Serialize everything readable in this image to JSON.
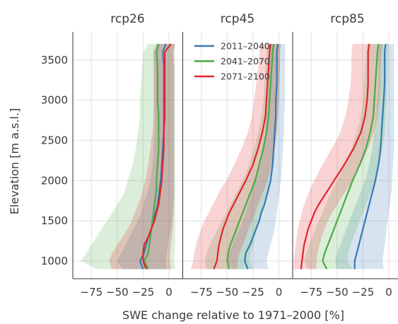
{
  "chart_data": {
    "type": "line",
    "ylabel": "Elevation [m a.s.l.]",
    "xlabel": "SWE change relative to 1971–2000 [%]",
    "xlim": [
      -93,
      13
    ],
    "ylim": [
      780,
      3850
    ],
    "xticks": [
      -75,
      -50,
      -25,
      0
    ],
    "xtick_labels": [
      "−75",
      "−50",
      "−25",
      "0"
    ],
    "yticks": [
      1000,
      1500,
      2000,
      2500,
      3000,
      3500
    ],
    "ytick_labels": [
      "1000",
      "1500",
      "2000",
      "2500",
      "3000",
      "3500"
    ],
    "grid": true,
    "legend_placement": "top-center (rcp45 panel)",
    "colors": {
      "2011–2040": "#3878b4",
      "2041–2070": "#4aab46",
      "2071–2100": "#e0252a"
    },
    "series_names": [
      "2011–2040",
      "2041–2070",
      "2071–2100"
    ],
    "elevations": [
      900,
      1000,
      1100,
      1200,
      1300,
      1400,
      1500,
      1600,
      1700,
      1800,
      1900,
      2000,
      2200,
      2400,
      2600,
      2800,
      3000,
      3200,
      3400,
      3600,
      3700
    ],
    "panels": [
      {
        "title": "rcp26",
        "series": [
          {
            "name": "2011–2040",
            "values": [
              -25,
              -28,
              -24,
              -22,
              -20,
              -17,
              -15,
              -13,
              -11,
              -10,
              -9,
              -8,
              -7,
              -6,
              -5,
              -5,
              -5,
              -5,
              -5,
              -6,
              -3
            ],
            "low": [
              -45,
              -50,
              -46,
              -42,
              -38,
              -34,
              -30,
              -27,
              -25,
              -22,
              -20,
              -18,
              -16,
              -15,
              -14,
              -14,
              -14,
              -14,
              -14,
              -15,
              -12
            ],
            "high": [
              -2,
              -3,
              -2,
              -1,
              0,
              2,
              3,
              4,
              4,
              5,
              5,
              5,
              5,
              5,
              5,
              5,
              5,
              5,
              5,
              4,
              5
            ]
          },
          {
            "name": "2041–2070",
            "values": [
              -20,
              -24,
              -20,
              -19,
              -18,
              -17,
              -16,
              -15,
              -14,
              -13,
              -12,
              -12,
              -11,
              -10,
              -10,
              -10,
              -11,
              -11,
              -11,
              -12,
              -10
            ],
            "low": [
              -70,
              -85,
              -80,
              -75,
              -70,
              -65,
              -60,
              -55,
              -50,
              -45,
              -42,
              -40,
              -35,
              -32,
              -30,
              -28,
              -28,
              -27,
              -26,
              -25,
              -20
            ],
            "high": [
              6,
              5,
              5,
              6,
              6,
              6,
              6,
              6,
              6,
              6,
              6,
              6,
              6,
              6,
              6,
              6,
              6,
              6,
              6,
              5,
              6
            ]
          },
          {
            "name": "2071–2100",
            "values": [
              -22,
              -25,
              -25,
              -24,
              -20,
              -17,
              -14,
              -12,
              -10,
              -9,
              -8,
              -7,
              -6,
              -5,
              -5,
              -4,
              -4,
              -4,
              -4,
              -4,
              2
            ],
            "low": [
              -55,
              -58,
              -55,
              -50,
              -45,
              -40,
              -36,
              -33,
              -30,
              -27,
              -25,
              -23,
              -20,
              -18,
              -16,
              -15,
              -15,
              -15,
              -15,
              -15,
              -12
            ],
            "high": [
              2,
              1,
              1,
              2,
              3,
              4,
              4,
              5,
              5,
              5,
              5,
              5,
              5,
              5,
              5,
              5,
              5,
              5,
              5,
              5,
              6
            ]
          }
        ]
      },
      {
        "title": "rcp45",
        "series": [
          {
            "name": "2011–2040",
            "values": [
              -30,
              -33,
              -32,
              -28,
              -25,
              -22,
              -19,
              -17,
              -14,
              -12,
              -10,
              -8,
              -6,
              -5,
              -4,
              -3,
              -3,
              -2,
              -2,
              -2,
              -1
            ],
            "low": [
              -45,
              -50,
              -48,
              -45,
              -42,
              -38,
              -35,
              -32,
              -30,
              -27,
              -25,
              -22,
              -18,
              -15,
              -13,
              -12,
              -11,
              -10,
              -10,
              -9,
              -8
            ],
            "high": [
              -10,
              -12,
              -10,
              -8,
              -6,
              -4,
              -3,
              -2,
              -1,
              0,
              1,
              2,
              3,
              4,
              5,
              5,
              6,
              6,
              6,
              6,
              6
            ]
          },
          {
            "name": "2041–2070",
            "values": [
              -48,
              -50,
              -49,
              -47,
              -44,
              -41,
              -38,
              -35,
              -32,
              -29,
              -26,
              -23,
              -19,
              -15,
              -12,
              -10,
              -9,
              -8,
              -7,
              -6,
              -5
            ],
            "low": [
              -70,
              -72,
              -70,
              -67,
              -63,
              -59,
              -55,
              -51,
              -47,
              -43,
              -39,
              -35,
              -29,
              -24,
              -20,
              -17,
              -15,
              -14,
              -13,
              -12,
              -11
            ],
            "high": [
              -25,
              -28,
              -27,
              -25,
              -23,
              -21,
              -19,
              -17,
              -15,
              -13,
              -11,
              -9,
              -6,
              -4,
              -2,
              -1,
              0,
              1,
              1,
              1,
              2
            ]
          },
          {
            "name": "2071–2100",
            "values": [
              -63,
              -60,
              -59,
              -58,
              -56,
              -54,
              -51,
              -48,
              -44,
              -40,
              -36,
              -32,
              -25,
              -20,
              -16,
              -13,
              -12,
              -11,
              -10,
              -9,
              -8
            ],
            "low": [
              -85,
              -83,
              -82,
              -80,
              -78,
              -75,
              -72,
              -68,
              -64,
              -60,
              -56,
              -51,
              -43,
              -36,
              -30,
              -26,
              -24,
              -22,
              -20,
              -19,
              -18
            ],
            "high": [
              -40,
              -40,
              -38,
              -35,
              -32,
              -29,
              -26,
              -23,
              -20,
              -17,
              -14,
              -11,
              -7,
              -4,
              -2,
              -1,
              0,
              0,
              1,
              1,
              2
            ]
          }
        ]
      },
      {
        "title": "rcp85",
        "series": [
          {
            "name": "2011–2040",
            "values": [
              -33,
              -33,
              -31,
              -29,
              -27,
              -25,
              -23,
              -21,
              -19,
              -17,
              -15,
              -13,
              -10,
              -8,
              -7,
              -6,
              -5,
              -4,
              -4,
              -4,
              -3
            ],
            "low": [
              -50,
              -52,
              -50,
              -47,
              -44,
              -41,
              -38,
              -35,
              -32,
              -29,
              -26,
              -23,
              -19,
              -16,
              -14,
              -12,
              -11,
              -10,
              -10,
              -10,
              -9
            ],
            "high": [
              -5,
              -6,
              -5,
              -4,
              -3,
              -2,
              -1,
              0,
              1,
              2,
              3,
              3,
              4,
              5,
              5,
              5,
              5,
              5,
              5,
              5,
              5
            ]
          },
          {
            "name": "2041–2070",
            "values": [
              -60,
              -64,
              -62,
              -59,
              -56,
              -53,
              -50,
              -47,
              -44,
              -41,
              -38,
              -35,
              -28,
              -22,
              -18,
              -15,
              -14,
              -13,
              -12,
              -11,
              -10
            ],
            "low": [
              -78,
              -82,
              -80,
              -77,
              -74,
              -71,
              -68,
              -64,
              -61,
              -58,
              -54,
              -50,
              -43,
              -36,
              -31,
              -27,
              -25,
              -24,
              -23,
              -22,
              -21
            ],
            "high": [
              -35,
              -40,
              -39,
              -37,
              -34,
              -31,
              -28,
              -25,
              -22,
              -19,
              -16,
              -13,
              -9,
              -6,
              -4,
              -3,
              -2,
              -2,
              -1,
              -1,
              0
            ]
          },
          {
            "name": "2071–2100",
            "values": [
              -85,
              -84,
              -83,
              -82,
              -80,
              -78,
              -75,
              -72,
              -68,
              -63,
              -58,
              -53,
              -43,
              -34,
              -27,
              -23,
              -21,
              -20,
              -20,
              -20,
              -19
            ],
            "low": [
              -92,
              -92,
              -91,
              -90,
              -89,
              -88,
              -86,
              -84,
              -82,
              -79,
              -76,
              -72,
              -64,
              -55,
              -47,
              -42,
              -39,
              -37,
              -36,
              -36,
              -35
            ],
            "high": [
              -70,
              -70,
              -69,
              -67,
              -65,
              -62,
              -59,
              -55,
              -50,
              -45,
              -40,
              -35,
              -27,
              -20,
              -14,
              -11,
              -9,
              -8,
              -8,
              -7,
              -6
            ]
          }
        ]
      }
    ]
  }
}
